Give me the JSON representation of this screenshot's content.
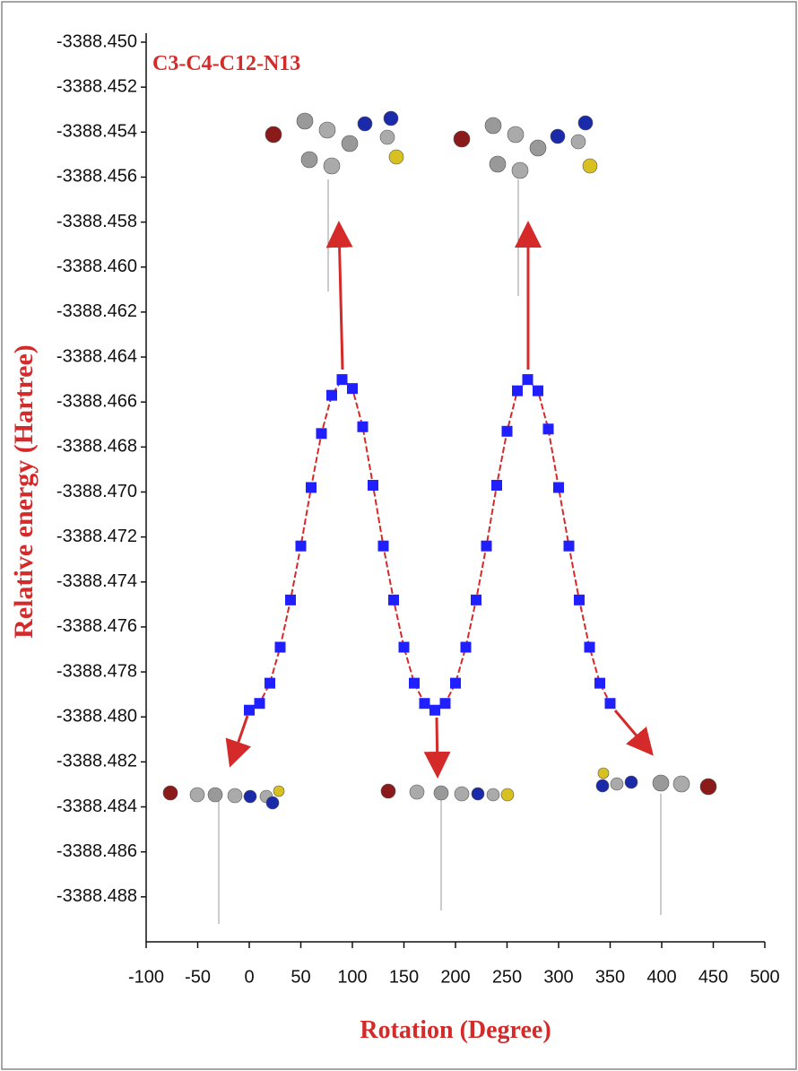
{
  "chart_data": {
    "type": "line",
    "xlabel": "Rotation (Degree)",
    "ylabel": "Relative energy (Hartree)",
    "annotation": "C3-C4-C12-N13",
    "x": [
      0,
      10,
      20,
      30,
      40,
      50,
      60,
      70,
      80,
      90,
      100,
      110,
      120,
      130,
      140,
      150,
      160,
      170,
      180,
      190,
      200,
      210,
      220,
      230,
      240,
      250,
      260,
      270,
      280,
      290,
      300,
      310,
      320,
      330,
      340,
      350
    ],
    "values": [
      -3388.4797,
      -3388.4794,
      -3388.4785,
      -3388.4769,
      -3388.4748,
      -3388.4724,
      -3388.4698,
      -3388.4674,
      -3388.4657,
      -3388.465,
      -3388.4654,
      -3388.4671,
      -3388.4697,
      -3388.4724,
      -3388.4748,
      -3388.4769,
      -3388.4785,
      -3388.4794,
      -3388.4797,
      -3388.4794,
      -3388.4785,
      -3388.4769,
      -3388.4748,
      -3388.4724,
      -3388.4697,
      -3388.4673,
      -3388.4655,
      -3388.465,
      -3388.4655,
      -3388.4672,
      -3388.4698,
      -3388.4724,
      -3388.4748,
      -3388.4769,
      -3388.4785,
      -3388.4794
    ],
    "color": "#1f1fff",
    "line_color": "#d42a2a",
    "xlim": [
      -100,
      500
    ],
    "xticks": [
      -100,
      -50,
      0,
      50,
      100,
      150,
      200,
      250,
      300,
      350,
      400,
      450,
      500
    ],
    "ylim": [
      -3388.49,
      -3388.45
    ],
    "yticks": [
      {
        "value": -3388.45,
        "label": "-3388.450"
      },
      {
        "value": -3388.452,
        "label": "-3388.452"
      },
      {
        "value": -3388.454,
        "label": "-3388.454"
      },
      {
        "value": -3388.456,
        "label": "-3388.456"
      },
      {
        "value": -3388.458,
        "label": "-3388.458"
      },
      {
        "value": -3388.46,
        "label": "-3388.460"
      },
      {
        "value": -3388.462,
        "label": "-3388.462"
      },
      {
        "value": -3388.464,
        "label": "-3388.464"
      },
      {
        "value": -3388.466,
        "label": "-3388.466"
      },
      {
        "value": -3388.468,
        "label": "-3388.468"
      },
      {
        "value": -3388.47,
        "label": "-3388.470"
      },
      {
        "value": -3388.472,
        "label": "-3388.472"
      },
      {
        "value": -3388.474,
        "label": "-3388.474"
      },
      {
        "value": -3388.476,
        "label": "-3388.476"
      },
      {
        "value": -3388.478,
        "label": "-3388.478"
      },
      {
        "value": -3388.48,
        "label": "-3388.480"
      },
      {
        "value": -3388.482,
        "label": "-3388.482"
      },
      {
        "value": -3388.484,
        "label": "-3388.484"
      },
      {
        "value": -3388.486,
        "label": "-3388.486"
      },
      {
        "value": -3388.488,
        "label": "-3388.488"
      }
    ],
    "grid": false
  }
}
